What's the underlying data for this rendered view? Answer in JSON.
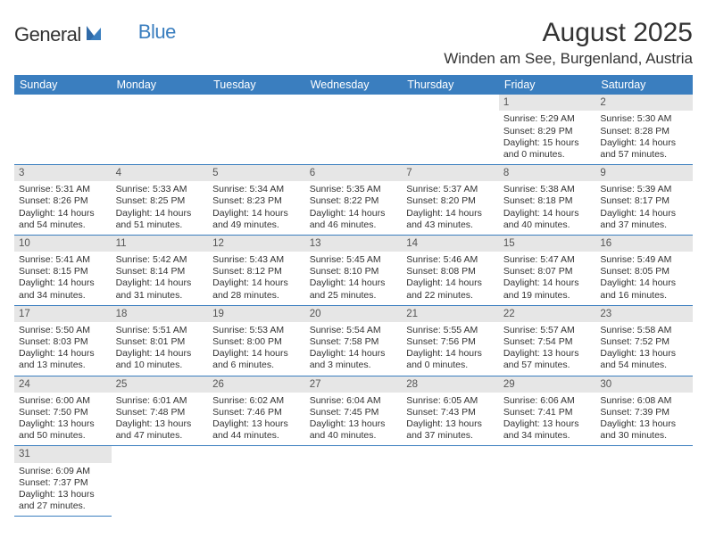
{
  "logo": {
    "general": "General",
    "blue": "Blue"
  },
  "title": "August 2025",
  "location": "Winden am See, Burgenland, Austria",
  "day_headers": [
    "Sunday",
    "Monday",
    "Tuesday",
    "Wednesday",
    "Thursday",
    "Friday",
    "Saturday"
  ],
  "colors": {
    "header_bg": "#3a7ebf",
    "header_fg": "#ffffff",
    "daynum_bg": "#e6e6e6",
    "rule": "#3a7ebf"
  },
  "weeks": [
    [
      null,
      null,
      null,
      null,
      null,
      {
        "n": "1",
        "sr": "Sunrise: 5:29 AM",
        "ss": "Sunset: 8:29 PM",
        "d1": "Daylight: 15 hours",
        "d2": "and 0 minutes."
      },
      {
        "n": "2",
        "sr": "Sunrise: 5:30 AM",
        "ss": "Sunset: 8:28 PM",
        "d1": "Daylight: 14 hours",
        "d2": "and 57 minutes."
      }
    ],
    [
      {
        "n": "3",
        "sr": "Sunrise: 5:31 AM",
        "ss": "Sunset: 8:26 PM",
        "d1": "Daylight: 14 hours",
        "d2": "and 54 minutes."
      },
      {
        "n": "4",
        "sr": "Sunrise: 5:33 AM",
        "ss": "Sunset: 8:25 PM",
        "d1": "Daylight: 14 hours",
        "d2": "and 51 minutes."
      },
      {
        "n": "5",
        "sr": "Sunrise: 5:34 AM",
        "ss": "Sunset: 8:23 PM",
        "d1": "Daylight: 14 hours",
        "d2": "and 49 minutes."
      },
      {
        "n": "6",
        "sr": "Sunrise: 5:35 AM",
        "ss": "Sunset: 8:22 PM",
        "d1": "Daylight: 14 hours",
        "d2": "and 46 minutes."
      },
      {
        "n": "7",
        "sr": "Sunrise: 5:37 AM",
        "ss": "Sunset: 8:20 PM",
        "d1": "Daylight: 14 hours",
        "d2": "and 43 minutes."
      },
      {
        "n": "8",
        "sr": "Sunrise: 5:38 AM",
        "ss": "Sunset: 8:18 PM",
        "d1": "Daylight: 14 hours",
        "d2": "and 40 minutes."
      },
      {
        "n": "9",
        "sr": "Sunrise: 5:39 AM",
        "ss": "Sunset: 8:17 PM",
        "d1": "Daylight: 14 hours",
        "d2": "and 37 minutes."
      }
    ],
    [
      {
        "n": "10",
        "sr": "Sunrise: 5:41 AM",
        "ss": "Sunset: 8:15 PM",
        "d1": "Daylight: 14 hours",
        "d2": "and 34 minutes."
      },
      {
        "n": "11",
        "sr": "Sunrise: 5:42 AM",
        "ss": "Sunset: 8:14 PM",
        "d1": "Daylight: 14 hours",
        "d2": "and 31 minutes."
      },
      {
        "n": "12",
        "sr": "Sunrise: 5:43 AM",
        "ss": "Sunset: 8:12 PM",
        "d1": "Daylight: 14 hours",
        "d2": "and 28 minutes."
      },
      {
        "n": "13",
        "sr": "Sunrise: 5:45 AM",
        "ss": "Sunset: 8:10 PM",
        "d1": "Daylight: 14 hours",
        "d2": "and 25 minutes."
      },
      {
        "n": "14",
        "sr": "Sunrise: 5:46 AM",
        "ss": "Sunset: 8:08 PM",
        "d1": "Daylight: 14 hours",
        "d2": "and 22 minutes."
      },
      {
        "n": "15",
        "sr": "Sunrise: 5:47 AM",
        "ss": "Sunset: 8:07 PM",
        "d1": "Daylight: 14 hours",
        "d2": "and 19 minutes."
      },
      {
        "n": "16",
        "sr": "Sunrise: 5:49 AM",
        "ss": "Sunset: 8:05 PM",
        "d1": "Daylight: 14 hours",
        "d2": "and 16 minutes."
      }
    ],
    [
      {
        "n": "17",
        "sr": "Sunrise: 5:50 AM",
        "ss": "Sunset: 8:03 PM",
        "d1": "Daylight: 14 hours",
        "d2": "and 13 minutes."
      },
      {
        "n": "18",
        "sr": "Sunrise: 5:51 AM",
        "ss": "Sunset: 8:01 PM",
        "d1": "Daylight: 14 hours",
        "d2": "and 10 minutes."
      },
      {
        "n": "19",
        "sr": "Sunrise: 5:53 AM",
        "ss": "Sunset: 8:00 PM",
        "d1": "Daylight: 14 hours",
        "d2": "and 6 minutes."
      },
      {
        "n": "20",
        "sr": "Sunrise: 5:54 AM",
        "ss": "Sunset: 7:58 PM",
        "d1": "Daylight: 14 hours",
        "d2": "and 3 minutes."
      },
      {
        "n": "21",
        "sr": "Sunrise: 5:55 AM",
        "ss": "Sunset: 7:56 PM",
        "d1": "Daylight: 14 hours",
        "d2": "and 0 minutes."
      },
      {
        "n": "22",
        "sr": "Sunrise: 5:57 AM",
        "ss": "Sunset: 7:54 PM",
        "d1": "Daylight: 13 hours",
        "d2": "and 57 minutes."
      },
      {
        "n": "23",
        "sr": "Sunrise: 5:58 AM",
        "ss": "Sunset: 7:52 PM",
        "d1": "Daylight: 13 hours",
        "d2": "and 54 minutes."
      }
    ],
    [
      {
        "n": "24",
        "sr": "Sunrise: 6:00 AM",
        "ss": "Sunset: 7:50 PM",
        "d1": "Daylight: 13 hours",
        "d2": "and 50 minutes."
      },
      {
        "n": "25",
        "sr": "Sunrise: 6:01 AM",
        "ss": "Sunset: 7:48 PM",
        "d1": "Daylight: 13 hours",
        "d2": "and 47 minutes."
      },
      {
        "n": "26",
        "sr": "Sunrise: 6:02 AM",
        "ss": "Sunset: 7:46 PM",
        "d1": "Daylight: 13 hours",
        "d2": "and 44 minutes."
      },
      {
        "n": "27",
        "sr": "Sunrise: 6:04 AM",
        "ss": "Sunset: 7:45 PM",
        "d1": "Daylight: 13 hours",
        "d2": "and 40 minutes."
      },
      {
        "n": "28",
        "sr": "Sunrise: 6:05 AM",
        "ss": "Sunset: 7:43 PM",
        "d1": "Daylight: 13 hours",
        "d2": "and 37 minutes."
      },
      {
        "n": "29",
        "sr": "Sunrise: 6:06 AM",
        "ss": "Sunset: 7:41 PM",
        "d1": "Daylight: 13 hours",
        "d2": "and 34 minutes."
      },
      {
        "n": "30",
        "sr": "Sunrise: 6:08 AM",
        "ss": "Sunset: 7:39 PM",
        "d1": "Daylight: 13 hours",
        "d2": "and 30 minutes."
      }
    ],
    [
      {
        "n": "31",
        "sr": "Sunrise: 6:09 AM",
        "ss": "Sunset: 7:37 PM",
        "d1": "Daylight: 13 hours",
        "d2": "and 27 minutes."
      },
      null,
      null,
      null,
      null,
      null,
      null
    ]
  ]
}
